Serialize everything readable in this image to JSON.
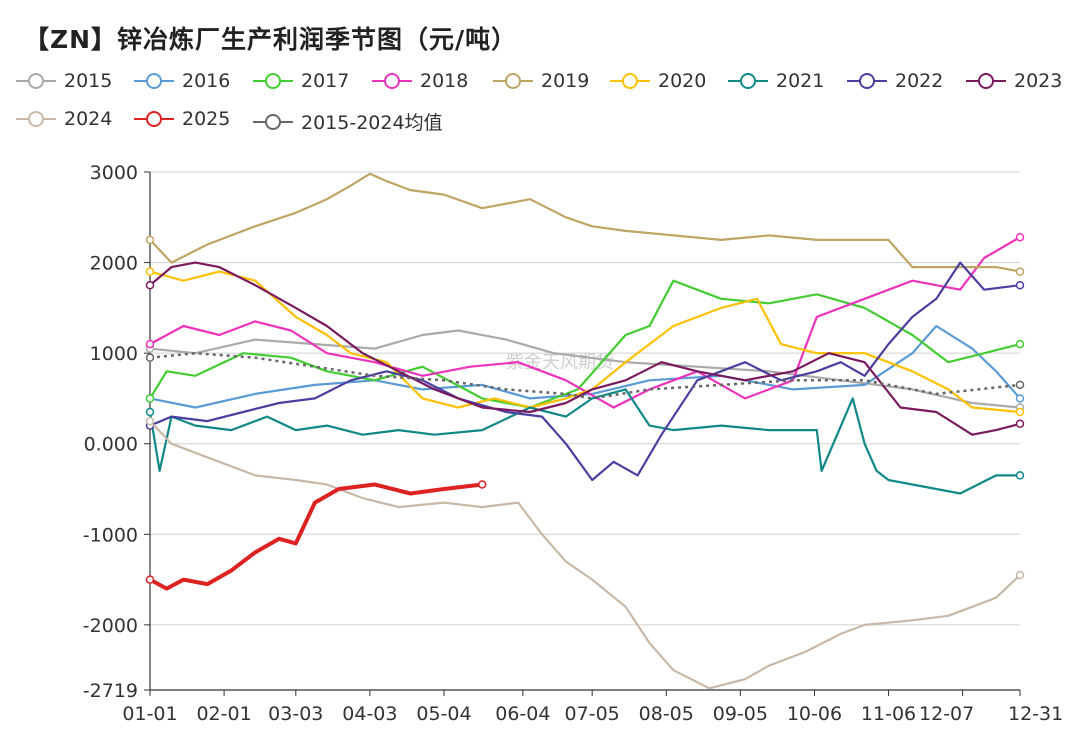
{
  "title": "【ZN】锌冶炼厂生产利润季节图（元/吨）",
  "chart_data": {
    "type": "line",
    "title": "【ZN】锌冶炼厂生产利润季节图（元/吨）",
    "xlabel": "",
    "ylabel": "",
    "ylim": [
      -2719,
      3000
    ],
    "y_ticks": [
      3000,
      2000,
      1000,
      0,
      -1000,
      -2000,
      -2719
    ],
    "y_tick_labels": [
      "3000",
      "2000",
      "1000",
      "0.000",
      "-1000",
      "-2000",
      "-2719"
    ],
    "x_ticks": [
      1,
      32,
      62,
      93,
      124,
      157,
      186,
      217,
      248,
      279,
      310,
      341,
      365
    ],
    "x_tick_labels": [
      "01-01",
      "02-01",
      "03-03",
      "04-03",
      "05-04",
      "06-04",
      "07-05",
      "08-05",
      "09-05",
      "10-06",
      "11-06",
      "12-07",
      "12-31"
    ],
    "grid": true,
    "legend": "top",
    "series": [
      {
        "name": "2015",
        "color": "#aaaaaa",
        "x": [
          1,
          20,
          45,
          70,
          95,
          115,
          130,
          150,
          170,
          200,
          230,
          260,
          290,
          320,
          345,
          365
        ],
        "values": [
          1050,
          1000,
          1150,
          1100,
          1050,
          1200,
          1250,
          1150,
          1000,
          900,
          850,
          800,
          700,
          600,
          450,
          400
        ]
      },
      {
        "name": "2016",
        "color": "#5b9bd5",
        "x": [
          1,
          20,
          45,
          70,
          95,
          115,
          140,
          160,
          186,
          210,
          240,
          270,
          300,
          320,
          330,
          345,
          355,
          365
        ],
        "values": [
          500,
          400,
          550,
          650,
          700,
          600,
          650,
          500,
          550,
          700,
          750,
          600,
          650,
          1000,
          1300,
          1050,
          800,
          500
        ]
      },
      {
        "name": "2017",
        "color": "#44cc33",
        "x": [
          1,
          8,
          20,
          40,
          60,
          75,
          95,
          115,
          140,
          160,
          180,
          200,
          210,
          220,
          240,
          260,
          280,
          300,
          320,
          335,
          350,
          365
        ],
        "values": [
          500,
          800,
          750,
          1000,
          950,
          800,
          700,
          850,
          500,
          400,
          600,
          1200,
          1300,
          1800,
          1600,
          1550,
          1650,
          1500,
          1200,
          900,
          1000,
          1100
        ]
      },
      {
        "name": "2018",
        "color": "#ee33bb",
        "x": [
          1,
          15,
          30,
          45,
          60,
          75,
          95,
          115,
          135,
          155,
          175,
          195,
          210,
          230,
          250,
          270,
          280,
          300,
          320,
          340,
          350,
          365
        ],
        "values": [
          1100,
          1300,
          1200,
          1350,
          1250,
          1000,
          900,
          750,
          850,
          900,
          700,
          400,
          600,
          800,
          500,
          700,
          1400,
          1600,
          1800,
          1700,
          2050,
          2280
        ]
      },
      {
        "name": "2019",
        "color": "#bfa564",
        "x": [
          1,
          10,
          25,
          45,
          62,
          75,
          85,
          93,
          100,
          110,
          124,
          140,
          160,
          175,
          186,
          200,
          220,
          240,
          260,
          280,
          300,
          310,
          320,
          340,
          355,
          365
        ],
        "values": [
          2250,
          2000,
          2200,
          2400,
          2550,
          2700,
          2850,
          2980,
          2900,
          2800,
          2750,
          2600,
          2700,
          2500,
          2400,
          2350,
          2300,
          2250,
          2300,
          2250,
          2250,
          2250,
          1950,
          1950,
          1950,
          1900
        ]
      },
      {
        "name": "2020",
        "color": "#ffc000",
        "x": [
          1,
          15,
          30,
          45,
          62,
          75,
          85,
          100,
          115,
          130,
          145,
          160,
          175,
          186,
          200,
          220,
          240,
          255,
          265,
          280,
          300,
          320,
          335,
          345,
          365
        ],
        "values": [
          1900,
          1800,
          1900,
          1800,
          1400,
          1200,
          1000,
          900,
          500,
          400,
          500,
          400,
          500,
          600,
          900,
          1300,
          1500,
          1600,
          1100,
          1000,
          1000,
          800,
          600,
          400,
          350
        ]
      },
      {
        "name": "2021",
        "color": "#118888",
        "x": [
          1,
          5,
          10,
          20,
          35,
          50,
          62,
          75,
          90,
          105,
          120,
          140,
          160,
          175,
          186,
          200,
          210,
          220,
          240,
          260,
          280,
          282,
          295,
          300,
          305,
          310,
          320,
          340,
          355,
          365
        ],
        "values": [
          350,
          -300,
          300,
          200,
          150,
          300,
          150,
          200,
          100,
          150,
          100,
          150,
          400,
          300,
          500,
          600,
          200,
          150,
          200,
          150,
          150,
          -300,
          500,
          0,
          -300,
          -400,
          -450,
          -550,
          -350,
          -350
        ]
      },
      {
        "name": "2022",
        "color": "#4a3f9f",
        "x": [
          1,
          10,
          25,
          40,
          55,
          70,
          85,
          100,
          115,
          130,
          150,
          165,
          175,
          186,
          195,
          205,
          215,
          230,
          250,
          265,
          280,
          290,
          300,
          310,
          320,
          330,
          340,
          350,
          365
        ],
        "values": [
          200,
          300,
          250,
          350,
          450,
          500,
          700,
          800,
          700,
          500,
          350,
          300,
          0,
          -400,
          -200,
          -350,
          100,
          700,
          900,
          700,
          800,
          900,
          750,
          1100,
          1400,
          1600,
          2000,
          1700,
          1750
        ]
      },
      {
        "name": "2023",
        "color": "#7a1a5e",
        "x": [
          1,
          10,
          20,
          30,
          45,
          62,
          75,
          90,
          105,
          120,
          140,
          160,
          175,
          186,
          200,
          215,
          230,
          250,
          270,
          285,
          300,
          315,
          330,
          345,
          355,
          365
        ],
        "values": [
          1750,
          1950,
          2000,
          1950,
          1750,
          1500,
          1300,
          1000,
          800,
          600,
          400,
          350,
          450,
          600,
          700,
          900,
          800,
          700,
          800,
          1000,
          900,
          400,
          350,
          100,
          150,
          220
        ]
      },
      {
        "name": "2024",
        "color": "#c9b8a8",
        "x": [
          1,
          10,
          20,
          30,
          45,
          62,
          75,
          90,
          105,
          124,
          140,
          155,
          165,
          175,
          186,
          200,
          210,
          220,
          235,
          250,
          260,
          275,
          290,
          300,
          320,
          335,
          345,
          355,
          365
        ],
        "values": [
          250,
          0,
          -100,
          -200,
          -350,
          -400,
          -450,
          -600,
          -700,
          -650,
          -700,
          -650,
          -1000,
          -1300,
          -1500,
          -1800,
          -2200,
          -2500,
          -2700,
          -2600,
          -2450,
          -2300,
          -2100,
          -2000,
          -1950,
          -1900,
          -1800,
          -1700,
          -1450
        ]
      },
      {
        "name": "2025",
        "color": "#dd2222",
        "x": [
          1,
          8,
          15,
          25,
          35,
          45,
          55,
          62,
          70,
          80,
          95,
          110,
          124,
          140
        ],
        "values": [
          -1500,
          -1600,
          -1500,
          -1550,
          -1400,
          -1200,
          -1050,
          -1100,
          -650,
          -500,
          -450,
          -550,
          -500,
          -450
        ]
      },
      {
        "name": "2015-2024均值",
        "color": "#666666",
        "dashed": true,
        "x": [
          1,
          20,
          45,
          70,
          95,
          124,
          150,
          175,
          186,
          210,
          240,
          270,
          300,
          330,
          365
        ],
        "values": [
          950,
          1000,
          950,
          850,
          750,
          700,
          600,
          550,
          500,
          600,
          650,
          700,
          700,
          550,
          650
        ]
      }
    ],
    "watermark": "紫金天风期货"
  }
}
